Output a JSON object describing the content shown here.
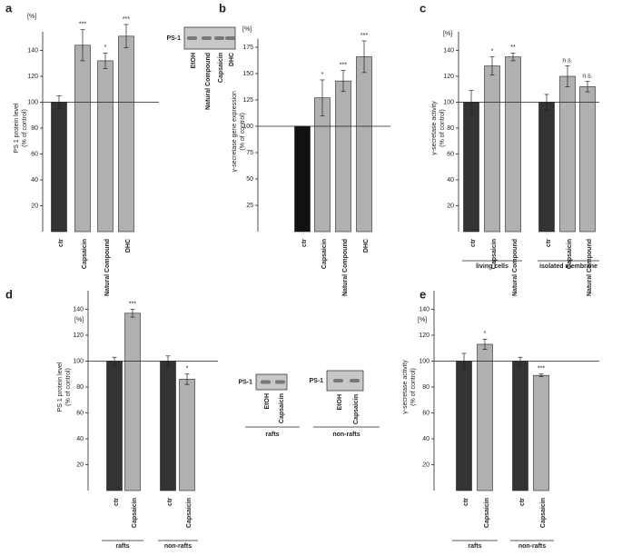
{
  "chart_data": [
    {
      "type": "bar",
      "letter": "a",
      "unit": "[%]",
      "ylabel": [
        "PS 1 protein level",
        "(% of control)"
      ],
      "categories": [
        "ctr",
        "Capsaicin",
        "Natural Compound",
        "DHC"
      ],
      "values": [
        100,
        144,
        132,
        151
      ],
      "errors": [
        5,
        12,
        6,
        9
      ],
      "annotations": [
        null,
        "***",
        "*",
        "***"
      ],
      "colors": [
        "#333333",
        "#b0b0b0",
        "#b0b0b0",
        "#b0b0b0"
      ],
      "refline": 100,
      "ylim": [
        0,
        160
      ],
      "yticks": [
        20,
        40,
        60,
        80,
        100,
        120,
        140
      ],
      "insets": [
        {
          "label": "PS-1",
          "lanes": [
            "EtOH",
            "Natural Compound",
            "Capsaicin",
            "DHC"
          ]
        }
      ]
    },
    {
      "type": "bar",
      "letter": "b",
      "unit": "[%]",
      "ylabel": [
        "γ-secretase gene expression",
        "(% of control)"
      ],
      "categories": [
        "ctr",
        "Capsaicin",
        "Natural Compound",
        "DHC"
      ],
      "values": [
        100,
        127,
        143,
        166
      ],
      "errors": [
        0,
        17,
        10,
        15
      ],
      "annotations": [
        null,
        "*",
        "***",
        "***"
      ],
      "colors": [
        "#111111",
        "#b0b0b0",
        "#b0b0b0",
        "#b0b0b0"
      ],
      "refline": 100,
      "ylim": [
        0,
        190
      ],
      "yticks": [
        25,
        50,
        75,
        100,
        125,
        150,
        175
      ]
    },
    {
      "type": "bar",
      "letter": "c",
      "unit": "[%]",
      "ylabel": [
        "γ-secretase activity",
        "(% of control)"
      ],
      "categories": [
        "ctr",
        "Capsaicin",
        "Natural Compound",
        "ctr",
        "Capsaicin",
        "Natural Compound"
      ],
      "values": [
        100,
        128,
        135,
        100,
        120,
        112
      ],
      "errors": [
        9,
        7,
        3,
        6,
        8,
        4
      ],
      "annotations": [
        null,
        "*",
        "**",
        null,
        "n.s.",
        "n.s."
      ],
      "colors": [
        "#333333",
        "#b0b0b0",
        "#b0b0b0",
        "#333333",
        "#b0b0b0",
        "#b0b0b0"
      ],
      "refline": 100,
      "ylim": [
        0,
        160
      ],
      "yticks": [
        20,
        40,
        60,
        80,
        100,
        120,
        140
      ],
      "groups": [
        "living cells",
        "isolated membrane"
      ]
    },
    {
      "type": "bar",
      "letter": "d",
      "unit": "[%]",
      "ylabel": [
        "PS 1 protein level",
        "(% of control)"
      ],
      "categories": [
        "ctr",
        "Capsaicin",
        "ctr",
        "Capsaicin"
      ],
      "values": [
        100,
        137,
        100,
        86
      ],
      "errors": [
        3,
        3,
        4,
        4
      ],
      "annotations": [
        null,
        "***",
        null,
        "*"
      ],
      "colors": [
        "#333333",
        "#b0b0b0",
        "#333333",
        "#b0b0b0"
      ],
      "refline": 100,
      "ylim": [
        0,
        160
      ],
      "yticks": [
        20,
        40,
        60,
        80,
        100,
        120,
        140
      ],
      "groups": [
        "rafts",
        "non-rafts"
      ],
      "insets": [
        {
          "label": "PS-1",
          "lanes": [
            "EtOH",
            "Capsaicin"
          ],
          "group": "rafts"
        },
        {
          "label": "PS-1",
          "lanes": [
            "EtOH",
            "Capsaicin"
          ],
          "group": "non-rafts"
        }
      ]
    },
    {
      "type": "bar",
      "letter": "e",
      "unit": "[%]",
      "ylabel": [
        "γ-secretase activity",
        "(% of control)"
      ],
      "categories": [
        "ctr",
        "Capsaicin",
        "ctr",
        "Capsaicin"
      ],
      "values": [
        100,
        113,
        100,
        89
      ],
      "errors": [
        6,
        4,
        3,
        1
      ],
      "annotations": [
        null,
        "*",
        null,
        "***"
      ],
      "colors": [
        "#333333",
        "#b0b0b0",
        "#333333",
        "#b0b0b0"
      ],
      "refline": 100,
      "ylim": [
        0,
        160
      ],
      "yticks": [
        20,
        40,
        60,
        80,
        100,
        120,
        140
      ],
      "groups": [
        "rafts",
        "non-rafts"
      ]
    }
  ]
}
